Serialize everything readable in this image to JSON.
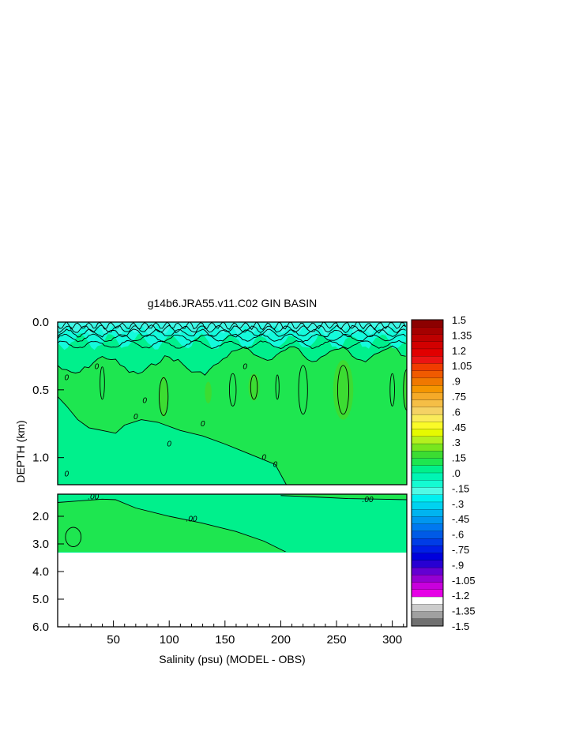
{
  "chart_data": {
    "type": "heatmap",
    "title": "g14b6.JRA55.v11.C02 GIN BASIN",
    "xlabel": "Salinity (psu) (MODEL - OBS)",
    "ylabel": "DEPTH (km)",
    "xlim": [
      0,
      313
    ],
    "x_ticks": [
      "50",
      "100",
      "150",
      "200",
      "250",
      "300"
    ],
    "x_tick_values": [
      50,
      100,
      150,
      200,
      250,
      300
    ],
    "upper_panel": {
      "ylim": [
        0.0,
        1.2
      ],
      "y_ticks": [
        "0.0",
        "0.5",
        "1.0"
      ],
      "y_tick_values": [
        0.0,
        0.5,
        1.0
      ]
    },
    "lower_panel": {
      "ylim": [
        1.2,
        6.0
      ],
      "y_ticks": [
        "2.0",
        "3.0",
        "4.0",
        "5.0",
        "6.0"
      ],
      "y_tick_values": [
        2.0,
        3.0,
        4.0,
        5.0,
        6.0
      ],
      "data_bottom_depth": 3.3
    },
    "contour_labels": [
      {
        "text": "0",
        "x": 35,
        "y": 0.33,
        "panel": "upper"
      },
      {
        "text": "0",
        "x": 8,
        "y": 0.41,
        "panel": "upper"
      },
      {
        "text": "0",
        "x": 70,
        "y": 0.7,
        "panel": "upper"
      },
      {
        "text": "0",
        "x": 78,
        "y": 0.58,
        "panel": "upper"
      },
      {
        "text": "0",
        "x": 100,
        "y": 0.9,
        "panel": "upper"
      },
      {
        "text": "0",
        "x": 130,
        "y": 0.75,
        "panel": "upper"
      },
      {
        "text": "0",
        "x": 168,
        "y": 0.33,
        "panel": "upper"
      },
      {
        "text": "0",
        "x": 185,
        "y": 1.0,
        "panel": "upper"
      },
      {
        "text": "0",
        "x": 195,
        "y": 1.05,
        "panel": "upper"
      },
      {
        "text": "0",
        "x": 8,
        "y": 1.12,
        "panel": "upper"
      },
      {
        "text": ".00",
        "x": 32,
        "y": 1.3,
        "panel": "lower"
      },
      {
        "text": ".00",
        "x": 120,
        "y": 2.1,
        "panel": "lower"
      },
      {
        "text": ".00",
        "x": 278,
        "y": 1.4,
        "panel": "lower"
      }
    ],
    "colorbar": {
      "labels": [
        "1.5",
        "1.35",
        "1.2",
        "1.05",
        ".9",
        ".75",
        ".6",
        ".45",
        ".3",
        ".15",
        ".0",
        "-.15",
        "-.3",
        "-.45",
        "-.6",
        "-.75",
        "-.9",
        "-1.05",
        "-1.2",
        "-1.35",
        "-1.5"
      ],
      "colors": [
        "#8c0000",
        "#a50000",
        "#be0000",
        "#d20000",
        "#e10000",
        "#eb1414",
        "#f03c00",
        "#f05a00",
        "#f07800",
        "#f59600",
        "#f5aa28",
        "#f5be46",
        "#f5d264",
        "#faeb5a",
        "#fafa28",
        "#e6fa00",
        "#b4f01e",
        "#78e61e",
        "#3cdc32",
        "#1ee650",
        "#00f08c",
        "#00f5b4",
        "#14fad2",
        "#50fae6",
        "#00f0f0",
        "#00d2f0",
        "#00b4f0",
        "#0096f0",
        "#0078f0",
        "#005ae6",
        "#003ce6",
        "#001ee6",
        "#0000dc",
        "#2800d2",
        "#6400d2",
        "#9600d2",
        "#c800dc",
        "#e600e6",
        "#ffffff",
        "#cccccc",
        "#a0a0a0",
        "#707070"
      ]
    },
    "field_colors": {
      "surface": "#40f8e6",
      "shallow": "#14fadc",
      "zero": "#00f08c",
      "positive": "#1ee650",
      "positive_core": "#3cdc32"
    },
    "grid": false
  }
}
